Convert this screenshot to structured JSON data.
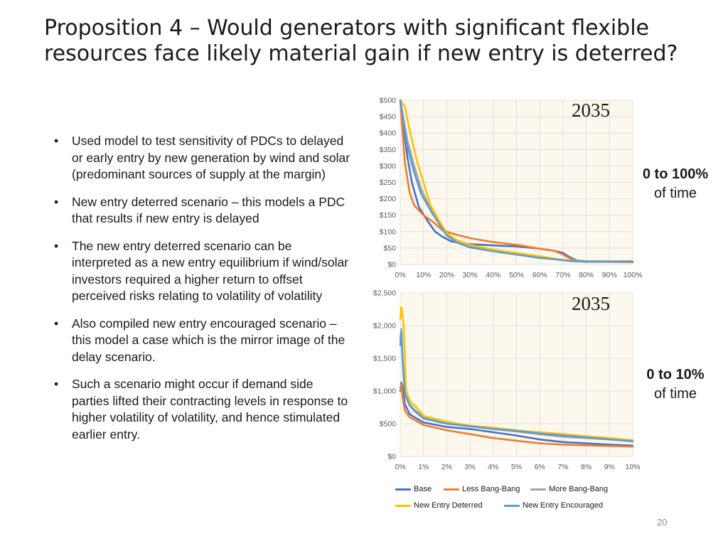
{
  "slide": {
    "title": "Proposition 4 – Would generators with significant flexible resources face likely material gain if new entry is deterred?",
    "bullets": [
      "Used model to test sensitivity of PDCs to delayed or early entry by new generation by wind and solar (predominant sources of supply at the margin)",
      "New entry deterred scenario – this models a PDC that results if new entry is delayed",
      "The new entry deterred scenario can be interpreted as a new entry equilibrium if wind/solar investors required a higher return to offset perceived risks relating to volatility of volatility",
      "Also compiled new entry encouraged scenario – this model a case which is the mirror image of the delay scenario.",
      "Such a scenario might occur if demand side parties lifted their contracting levels in response to higher volatility of volatility, and hence stimulated earlier entry."
    ],
    "page_number": "20"
  },
  "annotations": [
    {
      "range": "0 to 100%",
      "suffix": "of time"
    },
    {
      "range": "0 to 10%",
      "suffix": "of time"
    }
  ],
  "colors": {
    "Base": "#4472C4",
    "Less Bang-Bang": "#ED7D31",
    "More Bang-Bang": "#A5A5A5",
    "New Entry Deterred": "#FFC000",
    "New Entry Encouraged": "#5B9BD5",
    "plot_background": "#FDF8EE",
    "grid": "#D9D9D9"
  },
  "legend": [
    "Base",
    "Less Bang-Bang",
    "More Bang-Bang",
    "New Entry Deterred",
    "New Entry Encouraged"
  ],
  "chart_data": [
    {
      "type": "line",
      "title": "2035",
      "grid": true,
      "xlim": [
        0,
        100
      ],
      "ylim": [
        0,
        500
      ],
      "x_ticks": [
        "0%",
        "10%",
        "20%",
        "30%",
        "40%",
        "50%",
        "60%",
        "70%",
        "80%",
        "90%",
        "100%"
      ],
      "y_ticks": [
        "$0",
        "$50",
        "$100",
        "$150",
        "$200",
        "$250",
        "$300",
        "$350",
        "$400",
        "$450",
        "$500"
      ],
      "series": [
        {
          "name": "Base",
          "points": [
            [
              0,
              500
            ],
            [
              1,
              440
            ],
            [
              3,
              330
            ],
            [
              5,
              250
            ],
            [
              8,
              175
            ],
            [
              12,
              130
            ],
            [
              15,
              100
            ],
            [
              18,
              85
            ],
            [
              22,
              70
            ],
            [
              30,
              62
            ],
            [
              40,
              58
            ],
            [
              50,
              55
            ],
            [
              60,
              48
            ],
            [
              66,
              42
            ],
            [
              70,
              35
            ],
            [
              73,
              22
            ],
            [
              76,
              12
            ],
            [
              80,
              10
            ],
            [
              90,
              9
            ],
            [
              100,
              8
            ]
          ]
        },
        {
          "name": "Less Bang-Bang",
          "points": [
            [
              0,
              500
            ],
            [
              0.8,
              420
            ],
            [
              2,
              310
            ],
            [
              4,
              220
            ],
            [
              6,
              180
            ],
            [
              10,
              150
            ],
            [
              14,
              130
            ],
            [
              18,
              105
            ],
            [
              22,
              95
            ],
            [
              30,
              80
            ],
            [
              40,
              68
            ],
            [
              50,
              60
            ],
            [
              60,
              48
            ],
            [
              66,
              42
            ],
            [
              70,
              30
            ],
            [
              73,
              18
            ],
            [
              76,
              10
            ],
            [
              80,
              8
            ],
            [
              90,
              8
            ],
            [
              100,
              7
            ]
          ]
        },
        {
          "name": "More Bang-Bang",
          "points": [
            [
              0,
              500
            ],
            [
              1,
              460
            ],
            [
              3,
              380
            ],
            [
              6,
              300
            ],
            [
              9,
              230
            ],
            [
              13,
              170
            ],
            [
              17,
              130
            ],
            [
              20,
              90
            ],
            [
              24,
              70
            ],
            [
              30,
              55
            ],
            [
              40,
              42
            ],
            [
              50,
              32
            ],
            [
              60,
              22
            ],
            [
              66,
              17
            ],
            [
              70,
              14
            ],
            [
              74,
              11
            ],
            [
              80,
              9
            ],
            [
              90,
              9
            ],
            [
              100,
              9
            ]
          ]
        },
        {
          "name": "New Entry Deterred",
          "points": [
            [
              0,
              500
            ],
            [
              2,
              480
            ],
            [
              4,
              410
            ],
            [
              7,
              320
            ],
            [
              10,
              250
            ],
            [
              13,
              180
            ],
            [
              17,
              130
            ],
            [
              20,
              95
            ],
            [
              24,
              75
            ],
            [
              30,
              60
            ],
            [
              40,
              45
            ],
            [
              50,
              35
            ],
            [
              60,
              25
            ],
            [
              66,
              18
            ],
            [
              70,
              14
            ],
            [
              74,
              11
            ],
            [
              80,
              10
            ],
            [
              90,
              10
            ],
            [
              100,
              10
            ]
          ]
        },
        {
          "name": "New Entry Encouraged",
          "points": [
            [
              0,
              500
            ],
            [
              1,
              450
            ],
            [
              3,
              360
            ],
            [
              6,
              280
            ],
            [
              9,
              215
            ],
            [
              13,
              165
            ],
            [
              17,
              120
            ],
            [
              20,
              88
            ],
            [
              24,
              68
            ],
            [
              30,
              52
            ],
            [
              40,
              40
            ],
            [
              50,
              30
            ],
            [
              60,
              20
            ],
            [
              66,
              16
            ],
            [
              70,
              13
            ],
            [
              74,
              10
            ],
            [
              80,
              9
            ],
            [
              90,
              9
            ],
            [
              100,
              9
            ]
          ]
        }
      ]
    },
    {
      "type": "line",
      "title": "2035",
      "grid": true,
      "xlim": [
        0,
        10
      ],
      "ylim": [
        0,
        2500
      ],
      "x_ticks": [
        "0%",
        "1%",
        "2%",
        "3%",
        "4%",
        "5%",
        "6%",
        "7%",
        "8%",
        "9%",
        "10%"
      ],
      "y_ticks": [
        "$0",
        "$500",
        "$1,000",
        "$1,500",
        "$2,000",
        "$2,500"
      ],
      "series": [
        {
          "name": "Base",
          "points": [
            [
              0,
              1000
            ],
            [
              0.05,
              1130
            ],
            [
              0.1,
              1050
            ],
            [
              0.2,
              800
            ],
            [
              0.4,
              650
            ],
            [
              0.6,
              600
            ],
            [
              1,
              520
            ],
            [
              2,
              450
            ],
            [
              3,
              420
            ],
            [
              4,
              370
            ],
            [
              5,
              320
            ],
            [
              6,
              260
            ],
            [
              7,
              220
            ],
            [
              8,
              200
            ],
            [
              9,
              180
            ],
            [
              10,
              165
            ]
          ]
        },
        {
          "name": "Less Bang-Bang",
          "points": [
            [
              0,
              1000
            ],
            [
              0.05,
              1100
            ],
            [
              0.1,
              900
            ],
            [
              0.2,
              700
            ],
            [
              0.4,
              600
            ],
            [
              0.6,
              560
            ],
            [
              1,
              480
            ],
            [
              2,
              400
            ],
            [
              3,
              340
            ],
            [
              4,
              280
            ],
            [
              5,
              240
            ],
            [
              6,
              200
            ],
            [
              7,
              180
            ],
            [
              8,
              170
            ],
            [
              9,
              160
            ],
            [
              10,
              150
            ]
          ]
        },
        {
          "name": "More Bang-Bang",
          "points": [
            [
              0,
              1800
            ],
            [
              0.05,
              1950
            ],
            [
              0.1,
              1500
            ],
            [
              0.2,
              1000
            ],
            [
              0.4,
              800
            ],
            [
              0.6,
              720
            ],
            [
              1,
              600
            ],
            [
              2,
              510
            ],
            [
              3,
              470
            ],
            [
              4,
              420
            ],
            [
              5,
              380
            ],
            [
              6,
              340
            ],
            [
              7,
              300
            ],
            [
              8,
              280
            ],
            [
              9,
              260
            ],
            [
              10,
              240
            ]
          ]
        },
        {
          "name": "New Entry Deterred",
          "points": [
            [
              0,
              2100
            ],
            [
              0.05,
              2280
            ],
            [
              0.15,
              2000
            ],
            [
              0.25,
              1000
            ],
            [
              0.45,
              830
            ],
            [
              0.7,
              750
            ],
            [
              1,
              620
            ],
            [
              2,
              530
            ],
            [
              3,
              470
            ],
            [
              4,
              440
            ],
            [
              5,
              400
            ],
            [
              6,
              370
            ],
            [
              7,
              340
            ],
            [
              8,
              310
            ],
            [
              9,
              280
            ],
            [
              10,
              250
            ]
          ]
        },
        {
          "name": "New Entry Encouraged",
          "points": [
            [
              0,
              1700
            ],
            [
              0.05,
              1900
            ],
            [
              0.1,
              1450
            ],
            [
              0.2,
              950
            ],
            [
              0.4,
              780
            ],
            [
              0.6,
              700
            ],
            [
              1,
              580
            ],
            [
              2,
              500
            ],
            [
              3,
              460
            ],
            [
              4,
              420
            ],
            [
              5,
              390
            ],
            [
              6,
              350
            ],
            [
              7,
              320
            ],
            [
              8,
              290
            ],
            [
              9,
              260
            ],
            [
              10,
              230
            ]
          ]
        }
      ]
    }
  ]
}
